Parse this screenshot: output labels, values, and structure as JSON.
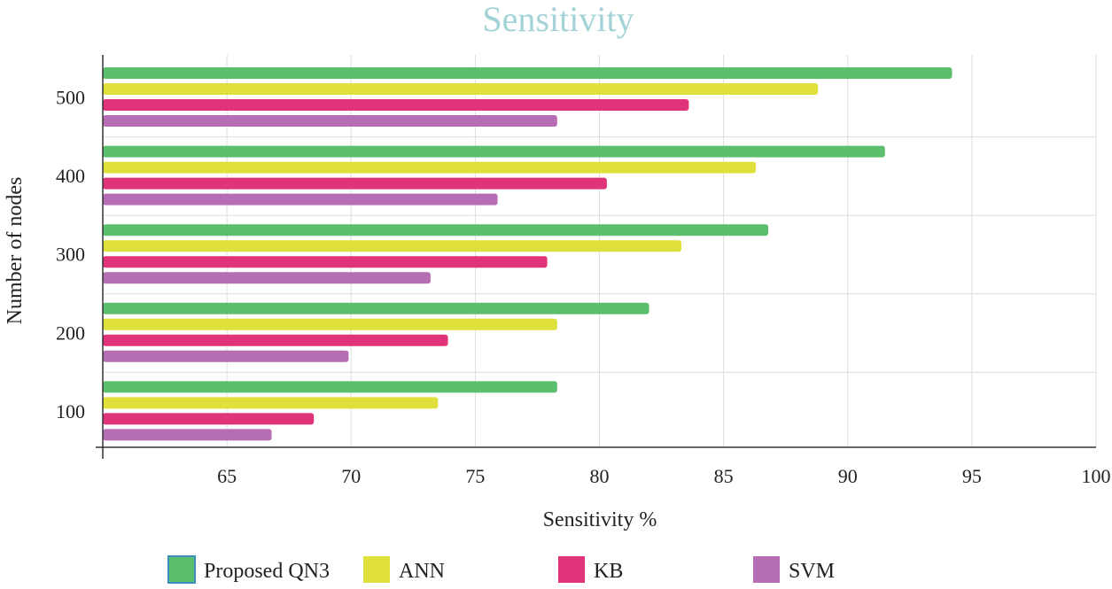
{
  "chart_data": {
    "type": "bar",
    "orientation": "horizontal",
    "title": "Sensitivity",
    "xlabel": "Sensitivity %",
    "ylabel": "Number of nodes",
    "categories": [
      "500",
      "400",
      "300",
      "200",
      "100"
    ],
    "xlim": [
      60,
      100
    ],
    "xticks": [
      65,
      70,
      75,
      80,
      85,
      90,
      95,
      100
    ],
    "grid": true,
    "legend_position": "bottom",
    "series": [
      {
        "name": "Proposed QN3",
        "color": "#5cbf6e",
        "values": [
          94.2,
          91.5,
          86.8,
          82.0,
          78.3
        ]
      },
      {
        "name": "ANN",
        "color": "#dfe03c",
        "values": [
          88.8,
          86.3,
          83.3,
          78.3,
          73.5
        ]
      },
      {
        "name": "KB",
        "color": "#e0337a",
        "values": [
          83.6,
          80.3,
          77.9,
          73.9,
          68.5
        ]
      },
      {
        "name": "SVM",
        "color": "#b56db3",
        "values": [
          78.3,
          75.9,
          73.2,
          69.9,
          66.8
        ]
      }
    ]
  }
}
